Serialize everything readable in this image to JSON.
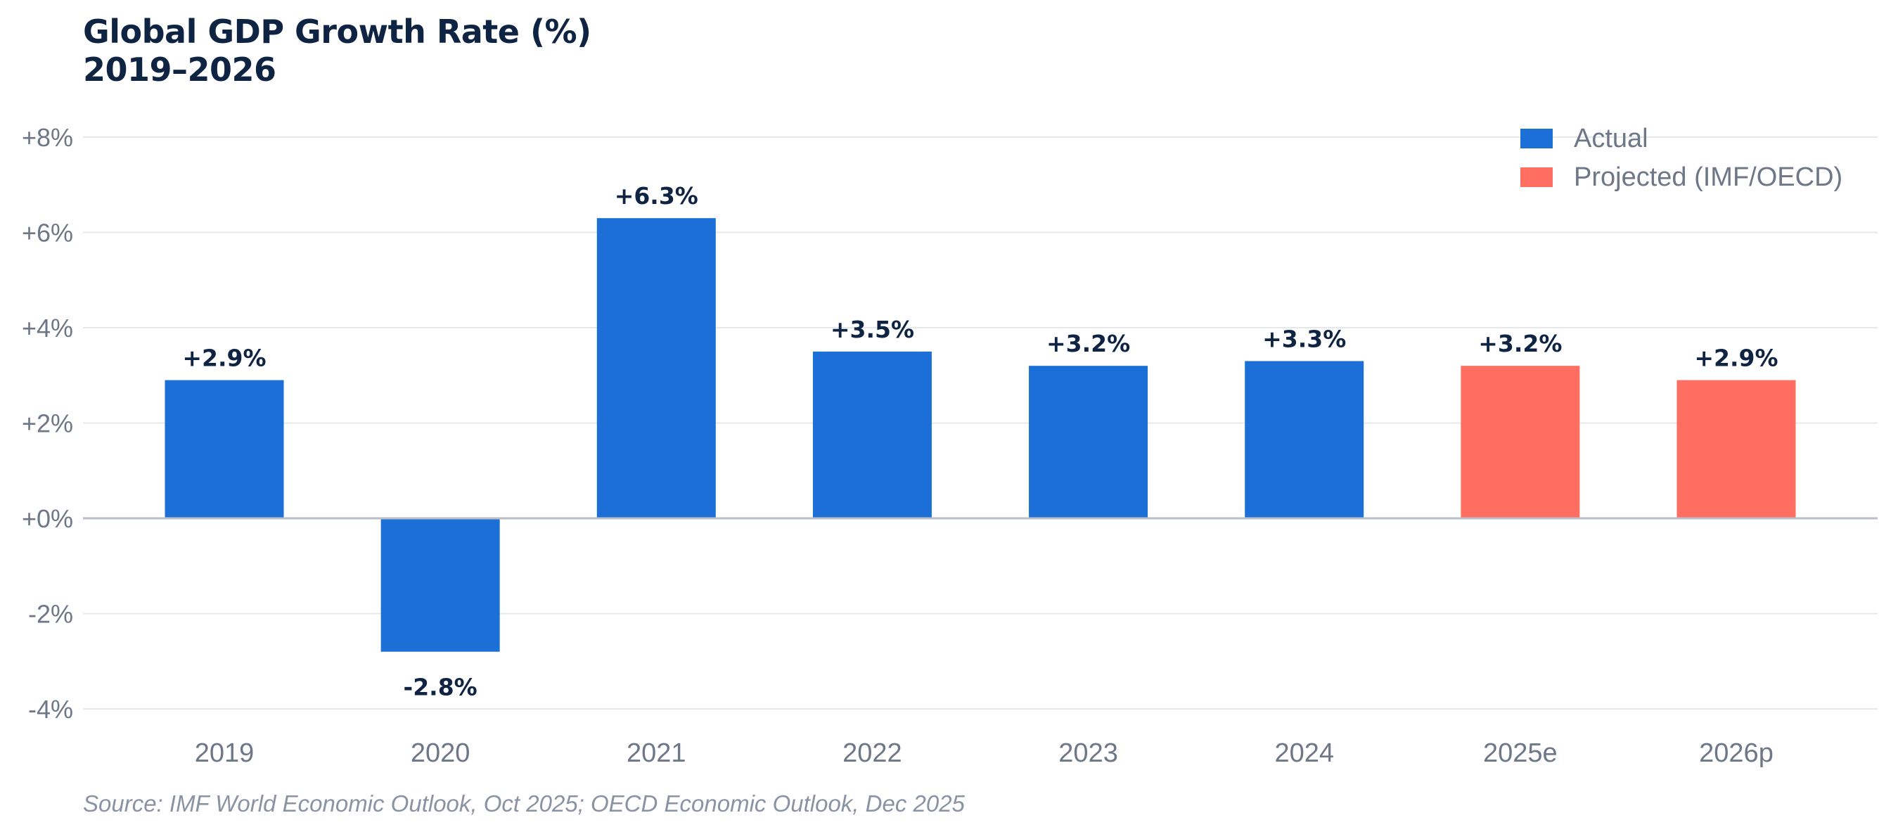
{
  "chart_data": {
    "type": "bar",
    "title": "Global GDP Growth Rate (%)",
    "subtitle": "2019–2026",
    "categories": [
      "2019",
      "2020",
      "2021",
      "2022",
      "2023",
      "2024",
      "2025e",
      "2026p"
    ],
    "values": [
      2.9,
      -2.8,
      6.3,
      3.5,
      3.2,
      3.3,
      3.2,
      2.9
    ],
    "value_labels": [
      "+2.9%",
      "-2.8%",
      "+6.3%",
      "+3.5%",
      "+3.2%",
      "+3.3%",
      "+3.2%",
      "+2.9%"
    ],
    "bar_kind": [
      "actual",
      "actual",
      "actual",
      "actual",
      "actual",
      "actual",
      "projected",
      "projected"
    ],
    "ylim": [
      -4,
      8
    ],
    "yticks": [
      8,
      6,
      4,
      2,
      0,
      -2,
      -4
    ],
    "ytick_labels": [
      "+8%",
      "+6%",
      "+4%",
      "+2%",
      "+0%",
      "-2%",
      "-4%"
    ],
    "grid": true,
    "legend": {
      "placement": "top-right",
      "items": [
        {
          "key": "actual",
          "label": "Actual",
          "color": "#1b6fd6"
        },
        {
          "key": "projected",
          "label": "Projected (IMF/OECD)",
          "color": "#ff6e60"
        }
      ]
    },
    "colors": {
      "actual": "#1b6fd6",
      "projected": "#ff6e60",
      "grid": "#e6e8ec",
      "zero_line": "#b9bec8",
      "tick_text": "#6e7787",
      "value_label": "#0f2443"
    },
    "source": "Source: IMF World Economic Outlook, Oct 2025; OECD Economic Outlook, Dec 2025"
  }
}
